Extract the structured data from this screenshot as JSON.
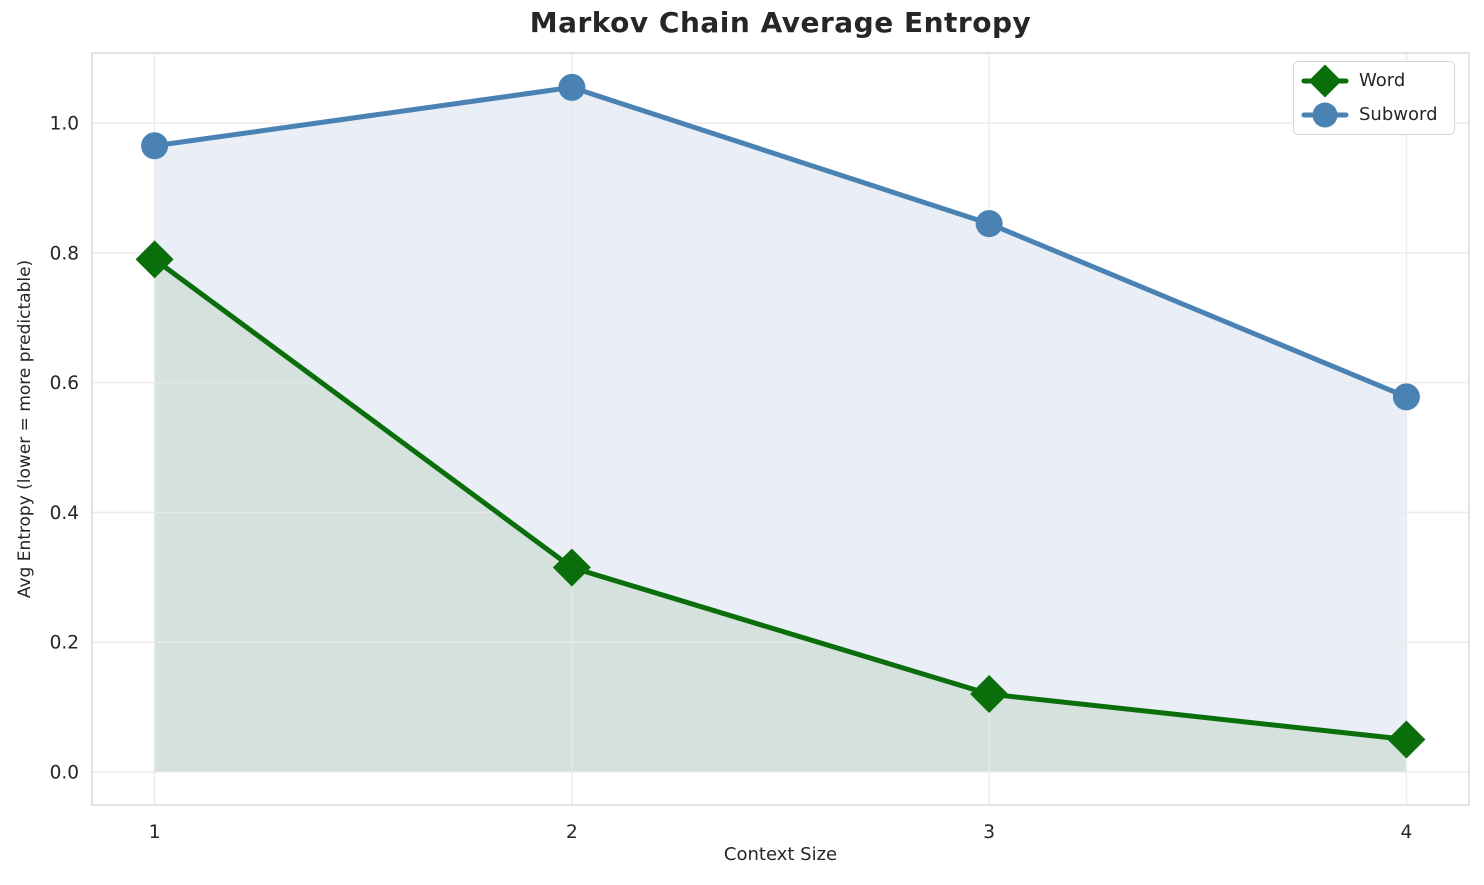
{
  "chart_data": {
    "type": "line",
    "title": "Markov Chain Average Entropy",
    "xlabel": "Context Size",
    "ylabel": "Avg Entropy (lower = more predictable)",
    "x": [
      1,
      2,
      3,
      4
    ],
    "xtick_labels": [
      "1",
      "2",
      "3",
      "4"
    ],
    "ytick_labels": [
      "0.0",
      "0.2",
      "0.4",
      "0.6",
      "0.8",
      "1.0"
    ],
    "xlim": [
      0.85,
      4.15
    ],
    "ylim": [
      -0.051,
      1.108
    ],
    "grid": true,
    "legend_position": "upper right",
    "background_color": "#ffffff",
    "text_color": "#262626",
    "grid_color": "#e9e9e9",
    "spine_color": "#d9d9d9",
    "series": [
      {
        "name": "Word",
        "marker": "diamond",
        "color": "#0a6e0a",
        "fill_color": "#d5e1dd",
        "values": [
          0.79,
          0.315,
          0.12,
          0.05
        ]
      },
      {
        "name": "Subword",
        "marker": "circle",
        "color": "#4a82b4",
        "fill_color": "#eaeef7",
        "values": [
          0.965,
          1.055,
          0.845,
          0.578
        ]
      }
    ]
  }
}
